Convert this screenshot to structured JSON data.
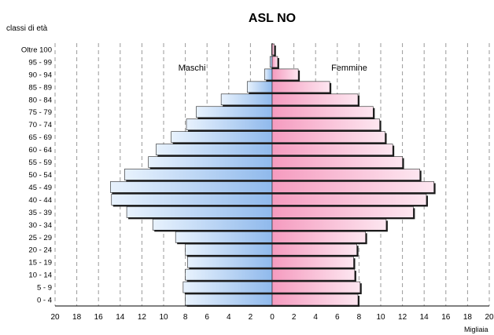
{
  "chart_data": {
    "type": "bar",
    "title": "ASL NO",
    "ylabel": "classi di età",
    "xlabel": "Migliaia",
    "categories": [
      "0 - 4",
      "5 - 9",
      "10 - 14",
      "15 - 19",
      "20 - 24",
      "25 - 29",
      "30 - 34",
      "35 - 39",
      "40 - 44",
      "45 - 49",
      "50 - 54",
      "55 - 59",
      "60 - 64",
      "65 - 69",
      "70 - 74",
      "75 - 79",
      "80 - 84",
      "85 - 89",
      "90 - 94",
      "95 - 99",
      "Oltre 100"
    ],
    "x_ticks": [
      "20",
      "18",
      "16",
      "14",
      "12",
      "10",
      "8",
      "6",
      "4",
      "2",
      "0",
      "2",
      "4",
      "6",
      "8",
      "10",
      "12",
      "14",
      "16",
      "18",
      "20"
    ],
    "xlim": [
      -20,
      20
    ],
    "grid": true,
    "series": [
      {
        "name": "Maschi",
        "values": [
          8.0,
          8.2,
          8.0,
          7.8,
          8.0,
          8.9,
          11.0,
          13.4,
          14.8,
          14.9,
          13.6,
          11.4,
          10.7,
          9.3,
          7.9,
          7.0,
          4.7,
          2.3,
          0.7,
          0.2,
          0.05
        ],
        "color": "#9cc3f0"
      },
      {
        "name": "Femmine",
        "values": [
          7.9,
          8.1,
          7.6,
          7.5,
          7.8,
          8.6,
          10.5,
          13.0,
          14.2,
          14.9,
          13.6,
          12.0,
          11.1,
          10.4,
          9.9,
          9.3,
          7.9,
          5.3,
          2.4,
          0.5,
          0.2
        ],
        "color": "#f7a8c8"
      }
    ]
  }
}
